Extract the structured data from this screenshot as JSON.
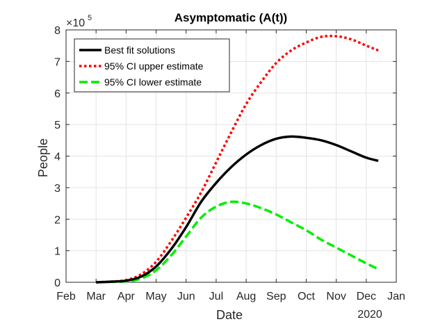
{
  "chart_data": {
    "type": "line",
    "title": "Asymptomatic (A(t))",
    "xlabel": "Date",
    "ylabel": "People",
    "y_exponent_base": "×10",
    "y_exponent_power": "5",
    "year_label": "2020",
    "xlim": [
      0,
      11
    ],
    "ylim": [
      0,
      8
    ],
    "x_ticks": [
      0,
      1,
      2,
      3,
      4,
      5,
      6,
      7,
      8,
      9,
      10,
      11
    ],
    "x_tick_labels": [
      "Feb",
      "Mar",
      "Apr",
      "May",
      "Jun",
      "Jul",
      "Aug",
      "Sep",
      "Oct",
      "Nov",
      "Dec",
      "Jan"
    ],
    "y_ticks": [
      0,
      1,
      2,
      3,
      4,
      5,
      6,
      7,
      8
    ],
    "y_tick_labels": [
      "0",
      "1",
      "2",
      "3",
      "4",
      "5",
      "6",
      "7",
      "8"
    ],
    "grid": true,
    "legend_position": "top-left",
    "series": [
      {
        "name": "Best fit solutions",
        "color": "#000000",
        "style": "solid",
        "x": [
          1.0,
          1.5,
          2.0,
          2.5,
          3.0,
          3.5,
          4.0,
          4.5,
          5.0,
          5.5,
          6.0,
          6.5,
          7.0,
          7.5,
          8.0,
          8.5,
          9.0,
          9.5,
          10.0,
          10.4
        ],
        "y": [
          0.0,
          0.02,
          0.05,
          0.18,
          0.5,
          1.05,
          1.75,
          2.55,
          3.15,
          3.65,
          4.05,
          4.35,
          4.55,
          4.62,
          4.58,
          4.5,
          4.35,
          4.15,
          3.95,
          3.85
        ]
      },
      {
        "name": "95% CI upper estimate",
        "color": "#ff0000",
        "style": "dotted",
        "x": [
          1.0,
          1.5,
          2.0,
          2.5,
          3.0,
          3.5,
          4.0,
          4.5,
          5.0,
          5.5,
          6.0,
          6.5,
          7.0,
          7.5,
          8.0,
          8.5,
          9.0,
          9.5,
          10.0,
          10.4
        ],
        "y": [
          0.0,
          0.02,
          0.07,
          0.25,
          0.65,
          1.3,
          2.05,
          2.85,
          3.8,
          4.75,
          5.65,
          6.35,
          6.95,
          7.35,
          7.6,
          7.78,
          7.8,
          7.7,
          7.5,
          7.35
        ]
      },
      {
        "name": "95% CI lower estimate",
        "color": "#00ee00",
        "style": "dashed",
        "x": [
          1.0,
          1.5,
          2.0,
          2.5,
          3.0,
          3.5,
          4.0,
          4.5,
          5.0,
          5.5,
          6.0,
          6.5,
          7.0,
          7.5,
          8.0,
          8.5,
          9.0,
          9.5,
          10.0,
          10.4
        ],
        "y": [
          0.0,
          0.01,
          0.03,
          0.12,
          0.38,
          0.85,
          1.45,
          2.05,
          2.4,
          2.55,
          2.5,
          2.35,
          2.15,
          1.9,
          1.65,
          1.35,
          1.1,
          0.85,
          0.6,
          0.42
        ]
      }
    ]
  }
}
